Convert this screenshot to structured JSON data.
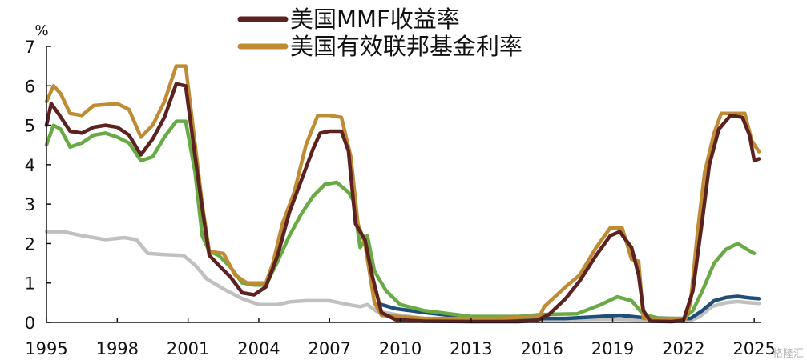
{
  "chart_data": {
    "type": "line",
    "title": "",
    "xlabel": "",
    "ylabel": "%",
    "xlim": [
      1995,
      2025.3
    ],
    "ylim": [
      0,
      7
    ],
    "x_ticks": [
      "1995",
      "1998",
      "2001",
      "2004",
      "2007",
      "2010",
      "2013",
      "2016",
      "2019",
      "2022",
      "2025"
    ],
    "y_ticks": [
      "0",
      "1",
      "2",
      "3",
      "4",
      "5",
      "6",
      "7"
    ],
    "grid": false,
    "legend": "top-center",
    "series": [
      {
        "name": "美国MMF收益率",
        "color": "#5c2220",
        "points": [
          [
            1995,
            5.0
          ],
          [
            1995.2,
            5.55
          ],
          [
            1995.5,
            5.3
          ],
          [
            1996,
            4.85
          ],
          [
            1996.5,
            4.8
          ],
          [
            1997,
            4.95
          ],
          [
            1997.5,
            5.0
          ],
          [
            1998,
            4.95
          ],
          [
            1998.5,
            4.75
          ],
          [
            1999,
            4.25
          ],
          [
            1999.5,
            4.65
          ],
          [
            2000,
            5.2
          ],
          [
            2000.5,
            6.05
          ],
          [
            2000.9,
            6.0
          ],
          [
            2001.3,
            4.2
          ],
          [
            2001.6,
            2.9
          ],
          [
            2001.9,
            1.7
          ],
          [
            2002.3,
            1.45
          ],
          [
            2002.8,
            1.15
          ],
          [
            2003.3,
            0.75
          ],
          [
            2003.8,
            0.7
          ],
          [
            2004.3,
            0.9
          ],
          [
            2004.8,
            1.7
          ],
          [
            2005.3,
            2.8
          ],
          [
            2005.8,
            3.6
          ],
          [
            2006.3,
            4.4
          ],
          [
            2006.6,
            4.8
          ],
          [
            2007.0,
            4.85
          ],
          [
            2007.5,
            4.85
          ],
          [
            2007.8,
            4.35
          ],
          [
            2008.1,
            2.5
          ],
          [
            2008.5,
            2.1
          ],
          [
            2008.8,
            1.2
          ],
          [
            2009.2,
            0.25
          ],
          [
            2009.8,
            0.07
          ],
          [
            2011,
            0.03
          ],
          [
            2013,
            0.02
          ],
          [
            2015,
            0.02
          ],
          [
            2015.8,
            0.05
          ],
          [
            2016.3,
            0.2
          ],
          [
            2017,
            0.6
          ],
          [
            2017.6,
            1.05
          ],
          [
            2018.3,
            1.7
          ],
          [
            2018.9,
            2.2
          ],
          [
            2019.3,
            2.3
          ],
          [
            2019.8,
            1.9
          ],
          [
            2020.1,
            1.2
          ],
          [
            2020.3,
            0.3
          ],
          [
            2020.6,
            0.03
          ],
          [
            2021.5,
            0.02
          ],
          [
            2022.0,
            0.05
          ],
          [
            2022.4,
            0.8
          ],
          [
            2022.8,
            2.6
          ],
          [
            2023.1,
            4.0
          ],
          [
            2023.5,
            4.9
          ],
          [
            2024.0,
            5.25
          ],
          [
            2024.5,
            5.2
          ],
          [
            2024.8,
            4.75
          ],
          [
            2025.0,
            4.1
          ],
          [
            2025.2,
            4.15
          ]
        ]
      },
      {
        "name": "美国有效联邦基金利率",
        "color": "#c08b35",
        "points": [
          [
            1995,
            5.6
          ],
          [
            1995.3,
            6.0
          ],
          [
            1995.6,
            5.8
          ],
          [
            1996,
            5.3
          ],
          [
            1996.5,
            5.25
          ],
          [
            1997,
            5.5
          ],
          [
            1998,
            5.55
          ],
          [
            1998.5,
            5.4
          ],
          [
            1999,
            4.7
          ],
          [
            1999.5,
            5.0
          ],
          [
            2000,
            5.6
          ],
          [
            2000.5,
            6.5
          ],
          [
            2000.9,
            6.5
          ],
          [
            2001.3,
            4.5
          ],
          [
            2001.6,
            3.0
          ],
          [
            2001.9,
            1.8
          ],
          [
            2002.5,
            1.75
          ],
          [
            2003,
            1.2
          ],
          [
            2003.5,
            1.0
          ],
          [
            2004.3,
            1.0
          ],
          [
            2004.6,
            1.5
          ],
          [
            2005,
            2.5
          ],
          [
            2005.5,
            3.3
          ],
          [
            2006,
            4.5
          ],
          [
            2006.5,
            5.25
          ],
          [
            2007,
            5.25
          ],
          [
            2007.5,
            5.2
          ],
          [
            2007.9,
            4.2
          ],
          [
            2008.2,
            2.5
          ],
          [
            2008.5,
            2.0
          ],
          [
            2008.9,
            0.5
          ],
          [
            2009.2,
            0.18
          ],
          [
            2011,
            0.1
          ],
          [
            2014,
            0.1
          ],
          [
            2015.9,
            0.15
          ],
          [
            2016.1,
            0.4
          ],
          [
            2017,
            0.9
          ],
          [
            2017.6,
            1.2
          ],
          [
            2018.3,
            1.9
          ],
          [
            2018.9,
            2.4
          ],
          [
            2019.4,
            2.4
          ],
          [
            2019.8,
            1.6
          ],
          [
            2020.1,
            1.55
          ],
          [
            2020.3,
            0.1
          ],
          [
            2021.5,
            0.08
          ],
          [
            2022.1,
            0.1
          ],
          [
            2022.3,
            0.5
          ],
          [
            2022.6,
            2.3
          ],
          [
            2022.9,
            3.8
          ],
          [
            2023.3,
            4.8
          ],
          [
            2023.6,
            5.3
          ],
          [
            2024.6,
            5.3
          ],
          [
            2024.9,
            4.6
          ],
          [
            2025.2,
            4.33
          ]
        ]
      },
      {
        "name": "",
        "color": "#6aaa45",
        "points": [
          [
            1995,
            4.5
          ],
          [
            1995.3,
            5.0
          ],
          [
            1995.6,
            4.9
          ],
          [
            1996,
            4.45
          ],
          [
            1996.5,
            4.55
          ],
          [
            1997,
            4.75
          ],
          [
            1997.5,
            4.8
          ],
          [
            1998,
            4.7
          ],
          [
            1998.5,
            4.55
          ],
          [
            1999,
            4.1
          ],
          [
            1999.5,
            4.2
          ],
          [
            2000,
            4.7
          ],
          [
            2000.5,
            5.1
          ],
          [
            2000.9,
            5.1
          ],
          [
            2001.3,
            3.8
          ],
          [
            2001.6,
            2.2
          ],
          [
            2001.9,
            1.8
          ],
          [
            2002.3,
            1.7
          ],
          [
            2002.8,
            1.4
          ],
          [
            2003.3,
            1.0
          ],
          [
            2003.8,
            0.95
          ],
          [
            2004.3,
            0.95
          ],
          [
            2004.8,
            1.55
          ],
          [
            2005.3,
            2.2
          ],
          [
            2005.8,
            2.75
          ],
          [
            2006.3,
            3.2
          ],
          [
            2006.8,
            3.5
          ],
          [
            2007.3,
            3.55
          ],
          [
            2007.8,
            3.3
          ],
          [
            2008.0,
            3.1
          ],
          [
            2008.3,
            1.9
          ],
          [
            2008.6,
            2.2
          ],
          [
            2008.9,
            1.3
          ],
          [
            2009.4,
            0.8
          ],
          [
            2010,
            0.45
          ],
          [
            2011,
            0.3
          ],
          [
            2013,
            0.15
          ],
          [
            2015,
            0.15
          ],
          [
            2016,
            0.2
          ],
          [
            2017.5,
            0.22
          ],
          [
            2018.5,
            0.45
          ],
          [
            2019.2,
            0.65
          ],
          [
            2019.8,
            0.55
          ],
          [
            2020.3,
            0.2
          ],
          [
            2021,
            0.1
          ],
          [
            2022.0,
            0.1
          ],
          [
            2022.4,
            0.3
          ],
          [
            2022.8,
            0.8
          ],
          [
            2023.3,
            1.5
          ],
          [
            2023.8,
            1.85
          ],
          [
            2024.3,
            2.0
          ],
          [
            2024.7,
            1.85
          ],
          [
            2025.0,
            1.75
          ]
        ]
      },
      {
        "name": "",
        "color": "#1f4e79",
        "points": [
          [
            2009.2,
            0.45
          ],
          [
            2009.8,
            0.35
          ],
          [
            2011,
            0.25
          ],
          [
            2013,
            0.12
          ],
          [
            2015,
            0.1
          ],
          [
            2017,
            0.1
          ],
          [
            2018.5,
            0.15
          ],
          [
            2019.3,
            0.18
          ],
          [
            2020.3,
            0.12
          ],
          [
            2021.5,
            0.1
          ],
          [
            2022.3,
            0.1
          ],
          [
            2022.8,
            0.3
          ],
          [
            2023.3,
            0.55
          ],
          [
            2023.8,
            0.63
          ],
          [
            2024.3,
            0.66
          ],
          [
            2024.8,
            0.62
          ],
          [
            2025.2,
            0.6
          ]
        ]
      },
      {
        "name": "",
        "color": "#c0c0c0",
        "points": [
          [
            1995,
            2.3
          ],
          [
            1995.7,
            2.3
          ],
          [
            1996.5,
            2.2
          ],
          [
            1997.5,
            2.1
          ],
          [
            1998.3,
            2.15
          ],
          [
            1998.8,
            2.1
          ],
          [
            1999.3,
            1.75
          ],
          [
            2000,
            1.72
          ],
          [
            2000.8,
            1.7
          ],
          [
            2001.3,
            1.45
          ],
          [
            2001.8,
            1.1
          ],
          [
            2002.5,
            0.85
          ],
          [
            2003.3,
            0.6
          ],
          [
            2004,
            0.45
          ],
          [
            2004.8,
            0.45
          ],
          [
            2005.3,
            0.52
          ],
          [
            2006,
            0.55
          ],
          [
            2007,
            0.55
          ],
          [
            2007.8,
            0.45
          ],
          [
            2008.3,
            0.4
          ],
          [
            2008.6,
            0.45
          ],
          [
            2009,
            0.28
          ],
          [
            2010,
            0.18
          ],
          [
            2011,
            0.1
          ],
          [
            2013,
            0.08
          ],
          [
            2015,
            0.07
          ],
          [
            2017,
            0.07
          ],
          [
            2019,
            0.08
          ],
          [
            2020.5,
            0.06
          ],
          [
            2021.5,
            0.03
          ],
          [
            2022.2,
            0.02
          ],
          [
            2022.7,
            0.15
          ],
          [
            2023.2,
            0.4
          ],
          [
            2023.8,
            0.5
          ],
          [
            2024.3,
            0.53
          ],
          [
            2024.8,
            0.5
          ],
          [
            2025.2,
            0.48
          ]
        ]
      }
    ]
  },
  "watermark": "格隆汇",
  "colors": {
    "axis": "#111111",
    "background": "#ffffff"
  }
}
